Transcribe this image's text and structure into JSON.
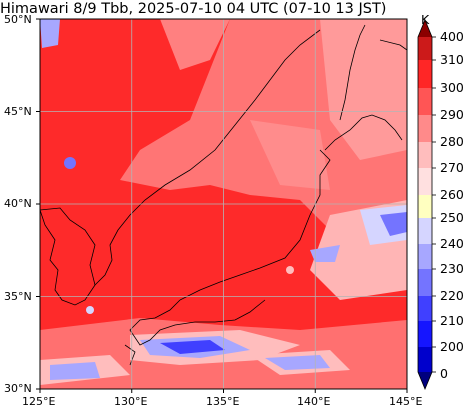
{
  "title": "Himawari 8/9 Tbb, 2025-07-10 04 UTC (07-10 13 JST)",
  "map": {
    "lon_range": [
      125,
      145
    ],
    "lat_range": [
      30,
      50
    ],
    "lon_ticks": [
      "125°E",
      "130°E",
      "135°E",
      "140°E",
      "145°E"
    ],
    "lat_ticks": [
      "50°N",
      "45°N",
      "40°N",
      "35°N",
      "30°N"
    ],
    "grid": true
  },
  "colorbar": {
    "unit": "K",
    "tick_labels": [
      "400",
      "310",
      "300",
      "290",
      "280",
      "270",
      "260",
      "250",
      "240",
      "230",
      "220",
      "210",
      "200",
      "0"
    ],
    "colors": [
      "#8b0000",
      "#cc1a1a",
      "#ff2626",
      "#ff5555",
      "#ff8a8a",
      "#ffbdbd",
      "#ffffc0",
      "#d5d5ff",
      "#a7a7ff",
      "#7474ff",
      "#4040ff",
      "#1515ff",
      "#0000cc",
      "#00007f"
    ]
  }
}
